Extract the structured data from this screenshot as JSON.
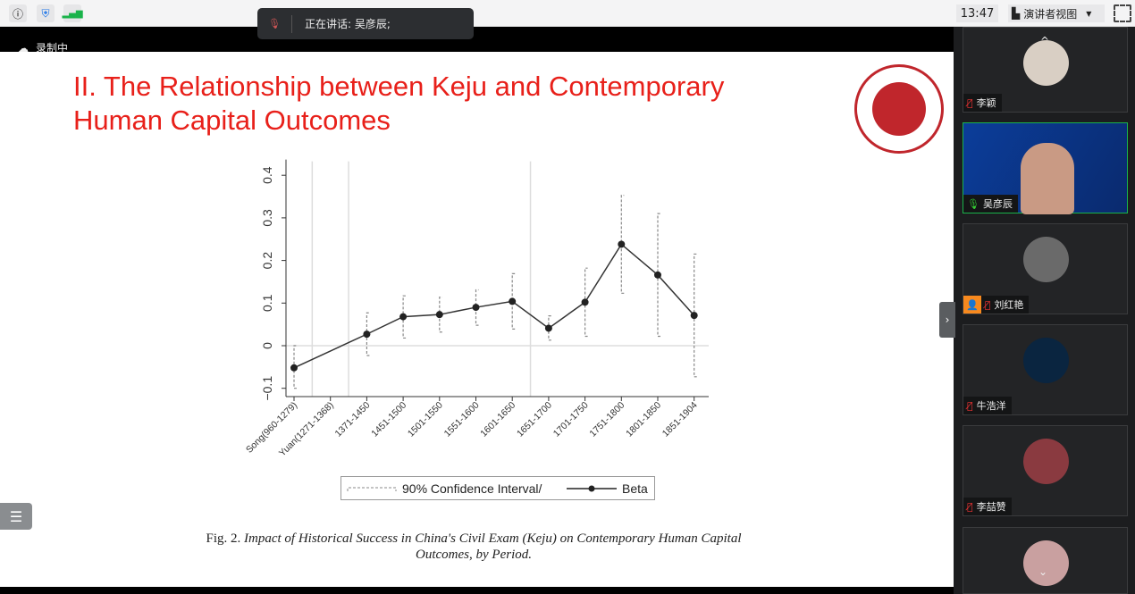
{
  "topbar": {
    "icons": [
      "info-icon",
      "shield-icon",
      "signal-icon"
    ],
    "clock": "13:47",
    "view_mode": "演讲者视图",
    "speaking_label": "正在讲话: 吴彦辰;",
    "recording": "录制中"
  },
  "slide": {
    "title_line1": "II. The Relationship between Keju and Contemporary",
    "title_line2": "Human Capital Outcomes",
    "caption_prefix": "Fig. 2. ",
    "caption_italic": "Impact of Historical Success in China's Civil Exam (Keju) on Contemporary Human Capital Outcomes, by Period.",
    "accent_color": "#e8201a"
  },
  "chart_data": {
    "type": "line",
    "title": "",
    "xlabel": "",
    "ylabel": "",
    "categories": [
      "Song(960-1279)",
      "Yuan(1271-1368)",
      "1371-1450",
      "1451-1500",
      "1501-1550",
      "1551-1600",
      "1601-1650",
      "1651-1700",
      "1701-1750",
      "1751-1800",
      "1801-1850",
      "1851-1904"
    ],
    "series": [
      {
        "name": "Beta",
        "values": [
          -0.052,
          null,
          0.027,
          0.068,
          0.073,
          0.09,
          0.104,
          0.041,
          0.102,
          0.238,
          0.166,
          0.071
        ]
      },
      {
        "name": "90% Confidence Interval/",
        "lower": [
          -0.1,
          null,
          -0.023,
          0.018,
          0.032,
          0.048,
          0.039,
          0.013,
          0.022,
          0.123,
          0.022,
          -0.073
        ],
        "upper": [
          0.0,
          null,
          0.077,
          0.117,
          0.114,
          0.131,
          0.169,
          0.07,
          0.182,
          0.353,
          0.31,
          0.215
        ]
      }
    ],
    "yticks": [
      "-0.1",
      "0",
      "0.1",
      "0.2",
      "0.3",
      "0.4"
    ],
    "ylim": [
      -0.12,
      0.42
    ],
    "reference_lines": {
      "horizontal_y": 0,
      "vertical_between": [
        [
          0,
          1
        ],
        [
          1,
          2
        ],
        [
          6,
          7
        ]
      ]
    },
    "legend": {
      "placement": "bottom",
      "ci_label": "90% Confidence Interval/",
      "beta_label": "Beta"
    }
  },
  "participants": [
    {
      "name": "李颖",
      "muted": true
    },
    {
      "name": "吴彦辰",
      "muted": false,
      "speaking": true
    },
    {
      "name": "刘红艳",
      "muted": true,
      "host": true
    },
    {
      "name": "牛浩洋",
      "muted": true
    },
    {
      "name": "李喆赞",
      "muted": true
    },
    {
      "name": "",
      "muted": true
    }
  ]
}
